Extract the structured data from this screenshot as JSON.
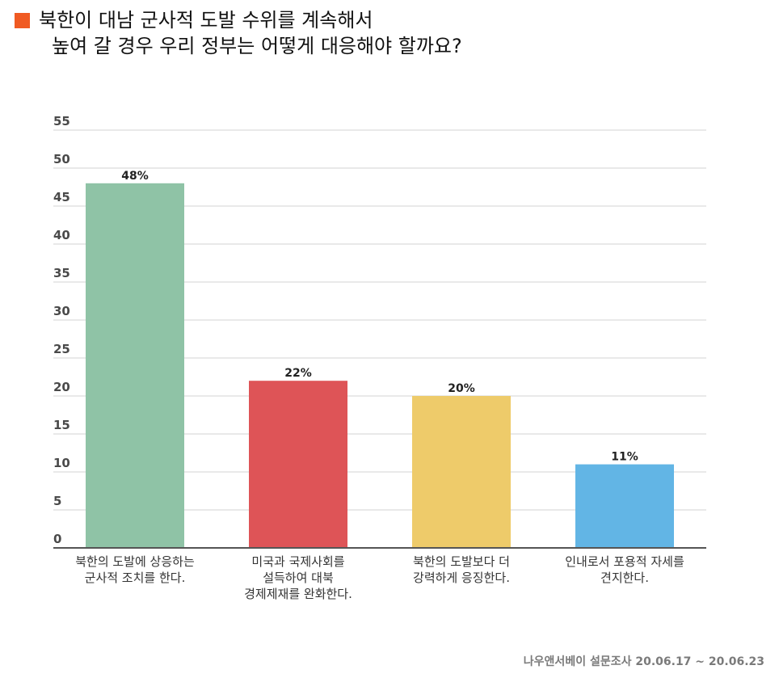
{
  "title": {
    "line1": "북한이 대남 군사적 도발 수위를 계속해서",
    "line2": "높여 갈 경우 우리 정부는 어떻게 대응해야 할까요?",
    "marker_color": "#f05a22"
  },
  "source": "나우앤서베이 설문조사 20.06.17 ~ 20.06.23",
  "chart_data": {
    "type": "bar",
    "title": "북한이 대남 군사적 도발 수위를 계속해서 높여 갈 경우 우리 정부는 어떻게 대응해야 할까요?",
    "xlabel": "",
    "ylabel": "",
    "ylim": [
      0,
      55
    ],
    "yticks": [
      0,
      5,
      10,
      15,
      20,
      25,
      30,
      35,
      40,
      45,
      50,
      55
    ],
    "grid": true,
    "legend": "none",
    "categories": [
      [
        "북한의 도발에 상응하는",
        "군사적 조치를 한다."
      ],
      [
        "미국과 국제사회를",
        "설득하여 대북",
        "경제제재를 완화한다."
      ],
      [
        "북한의 도발보다 더",
        "강력하게 응징한다."
      ],
      [
        "인내로서 포용적 자세를",
        "견지한다."
      ]
    ],
    "values": [
      48,
      22,
      20,
      11
    ],
    "value_labels": [
      "48%",
      "22%",
      "20%",
      "11%"
    ],
    "colors": [
      "#8fc3a6",
      "#de5457",
      "#eecb6a",
      "#62b5e5"
    ]
  }
}
